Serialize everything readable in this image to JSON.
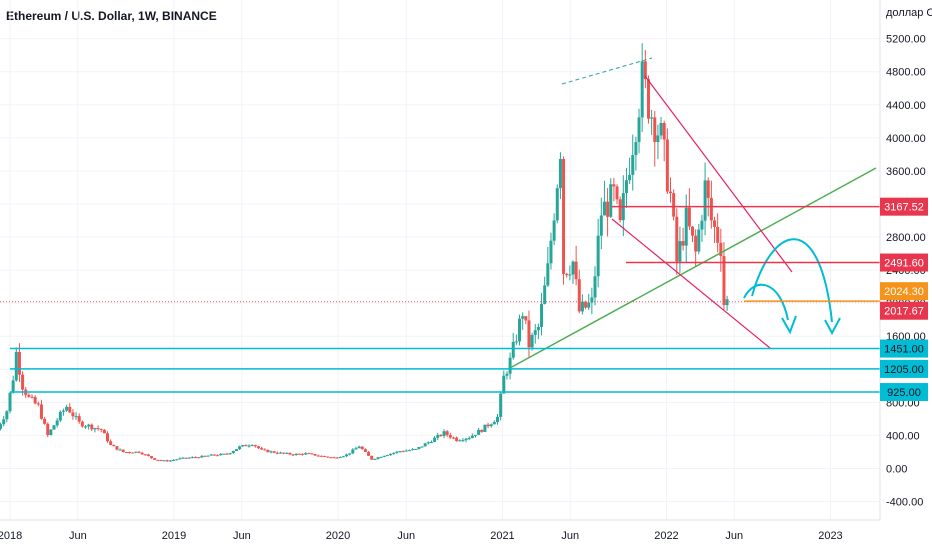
{
  "chart_data": {
    "type": "candlestick",
    "title": "Ethereum / U.S. Dollar, 1W, BINANCE",
    "currency_label": "доллар США",
    "y_ticks": [
      -400,
      0,
      400,
      800,
      1200,
      1600,
      2000,
      2400,
      2800,
      3200,
      3600,
      4000,
      4400,
      4800,
      5200
    ],
    "y_tick_labels": [
      "-400.00",
      "0.00",
      "400.00",
      "800.00",
      "1200.00",
      "1600.00",
      "2000.00",
      "2400.00",
      "2800.00",
      "3200.00",
      "3600.00",
      "4000.00",
      "4400.00",
      "4800.00",
      "5200.00"
    ],
    "x_ticks": [
      "2018",
      "Jun",
      "2019",
      "Jun",
      "2020",
      "Jun",
      "2021",
      "Jun",
      "2022",
      "Jun",
      "2023"
    ],
    "current_price": 2017.67,
    "horizontal_levels": [
      {
        "value": 3167.52,
        "label": "3167.52",
        "color": "#e8364f"
      },
      {
        "value": 2491.6,
        "label": "2491.60",
        "color": "#e8364f"
      },
      {
        "value": 2024.3,
        "label": "2024.30",
        "color": "#f7931a"
      },
      {
        "value": 1451.0,
        "label": "1451.00",
        "color": "#00bcd4"
      },
      {
        "value": 1205.0,
        "label": "1205.00",
        "color": "#00bcd4"
      },
      {
        "value": 925.0,
        "label": "925.00",
        "color": "#00bcd4"
      }
    ],
    "price_badge": {
      "value": 2017.67,
      "label": "2017.67",
      "color": "#e8364f"
    },
    "colors": {
      "up": "#26a69a",
      "down": "#ef5350",
      "trend_green": "#4caf50",
      "channel": "#e91e63",
      "arrows": "#00bcd4",
      "axis_text": "#131722"
    },
    "anchor_points": [
      [
        "2017-12-04",
        480
      ],
      [
        "2017-12-25",
        700
      ],
      [
        "2018-01-08",
        1100
      ],
      [
        "2018-01-15",
        1400
      ],
      [
        "2018-01-29",
        1000
      ],
      [
        "2018-02-12",
        850
      ],
      [
        "2018-03-05",
        750
      ],
      [
        "2018-03-26",
        400
      ],
      [
        "2018-04-23",
        650
      ],
      [
        "2018-05-07",
        750
      ],
      [
        "2018-06-04",
        550
      ],
      [
        "2018-07-23",
        470
      ],
      [
        "2018-08-13",
        280
      ],
      [
        "2018-09-10",
        200
      ],
      [
        "2018-10-15",
        200
      ],
      [
        "2018-11-19",
        110
      ],
      [
        "2018-12-17",
        90
      ],
      [
        "2019-01-14",
        120
      ],
      [
        "2019-02-25",
        140
      ],
      [
        "2019-03-25",
        160
      ],
      [
        "2019-04-29",
        175
      ],
      [
        "2019-05-27",
        260
      ],
      [
        "2019-06-24",
        300
      ],
      [
        "2019-07-15",
        220
      ],
      [
        "2019-08-19",
        190
      ],
      [
        "2019-09-23",
        170
      ],
      [
        "2019-10-21",
        180
      ],
      [
        "2019-11-25",
        150
      ],
      [
        "2019-12-23",
        130
      ],
      [
        "2020-01-20",
        165
      ],
      [
        "2020-02-17",
        270
      ],
      [
        "2020-03-16",
        110
      ],
      [
        "2020-04-13",
        160
      ],
      [
        "2020-05-18",
        210
      ],
      [
        "2020-06-22",
        230
      ],
      [
        "2020-07-27",
        340
      ],
      [
        "2020-08-24",
        430
      ],
      [
        "2020-09-21",
        350
      ],
      [
        "2020-10-19",
        380
      ],
      [
        "2020-11-16",
        470
      ],
      [
        "2020-12-21",
        620
      ],
      [
        "2021-01-04",
        1100
      ],
      [
        "2021-01-18",
        1300
      ],
      [
        "2021-02-15",
        1900
      ],
      [
        "2021-03-01",
        1500
      ],
      [
        "2021-03-22",
        1700
      ],
      [
        "2021-04-12",
        2400
      ],
      [
        "2021-05-03",
        3500
      ],
      [
        "2021-05-10",
        3900
      ],
      [
        "2021-05-17",
        2400
      ],
      [
        "2021-06-07",
        2500
      ],
      [
        "2021-06-21",
        1900
      ],
      [
        "2021-07-19",
        2000
      ],
      [
        "2021-08-09",
        3100
      ],
      [
        "2021-09-06",
        3300
      ],
      [
        "2021-09-20",
        2900
      ],
      [
        "2021-10-04",
        3500
      ],
      [
        "2021-10-25",
        4200
      ],
      [
        "2021-11-08",
        4700
      ],
      [
        "2021-11-29",
        4300
      ],
      [
        "2021-12-20",
        4000
      ],
      [
        "2022-01-10",
        3300
      ],
      [
        "2022-01-24",
        2500
      ],
      [
        "2022-02-14",
        3000
      ],
      [
        "2022-03-07",
        2600
      ],
      [
        "2022-03-28",
        3400
      ],
      [
        "2022-04-11",
        3000
      ],
      [
        "2022-05-02",
        2700
      ],
      [
        "2022-05-09",
        2000
      ],
      [
        "2022-05-16",
        2017.67
      ]
    ]
  }
}
